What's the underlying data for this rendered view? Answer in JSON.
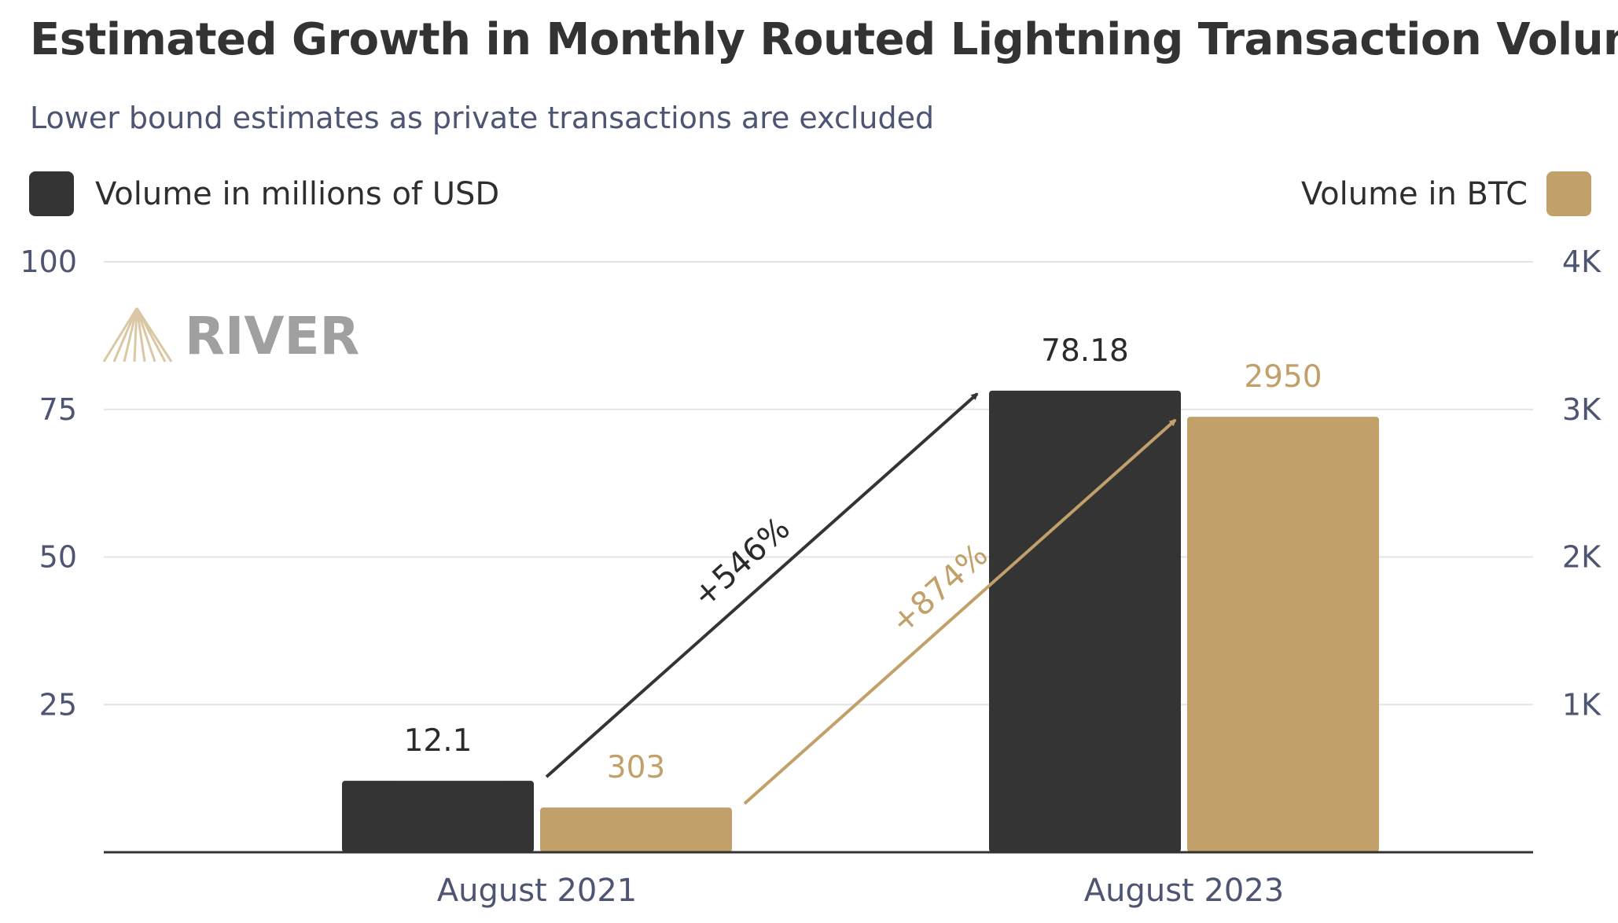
{
  "colors": {
    "usd": "#343434",
    "btc": "#c1a06a",
    "grid": "#e4e4e4",
    "axis": "#333333",
    "tick_text": "#4d5572"
  },
  "watermark": "RIVER",
  "chart_data": {
    "type": "bar",
    "title": "Estimated Growth in Monthly Routed Lightning Transaction Volume",
    "subtitle": "Lower bound estimates as private transactions are excluded",
    "categories": [
      "August 2021",
      "August 2023"
    ],
    "series": [
      {
        "name": "Volume in millions of USD",
        "axis": "left",
        "color_key": "usd",
        "values": [
          12.1,
          78.18
        ],
        "labels": [
          "12.1",
          "78.18"
        ]
      },
      {
        "name": "Volume in BTC",
        "axis": "right",
        "color_key": "btc",
        "values": [
          303,
          2950
        ],
        "labels": [
          "303",
          "2950"
        ]
      }
    ],
    "left_axis": {
      "min": 0,
      "max": 100,
      "ticks": [
        25,
        50,
        75,
        100
      ],
      "tick_labels": [
        "25",
        "50",
        "75",
        "100"
      ]
    },
    "right_axis": {
      "min": 0,
      "max": 4000,
      "ticks": [
        1000,
        2000,
        3000,
        4000
      ],
      "tick_labels": [
        "1K",
        "2K",
        "3K",
        "4K"
      ]
    },
    "annotations": [
      {
        "series": 0,
        "text": "+546%"
      },
      {
        "series": 1,
        "text": "+874%"
      }
    ],
    "legend": {
      "left": "Volume in millions of USD",
      "right": "Volume in BTC"
    },
    "grid": true
  }
}
